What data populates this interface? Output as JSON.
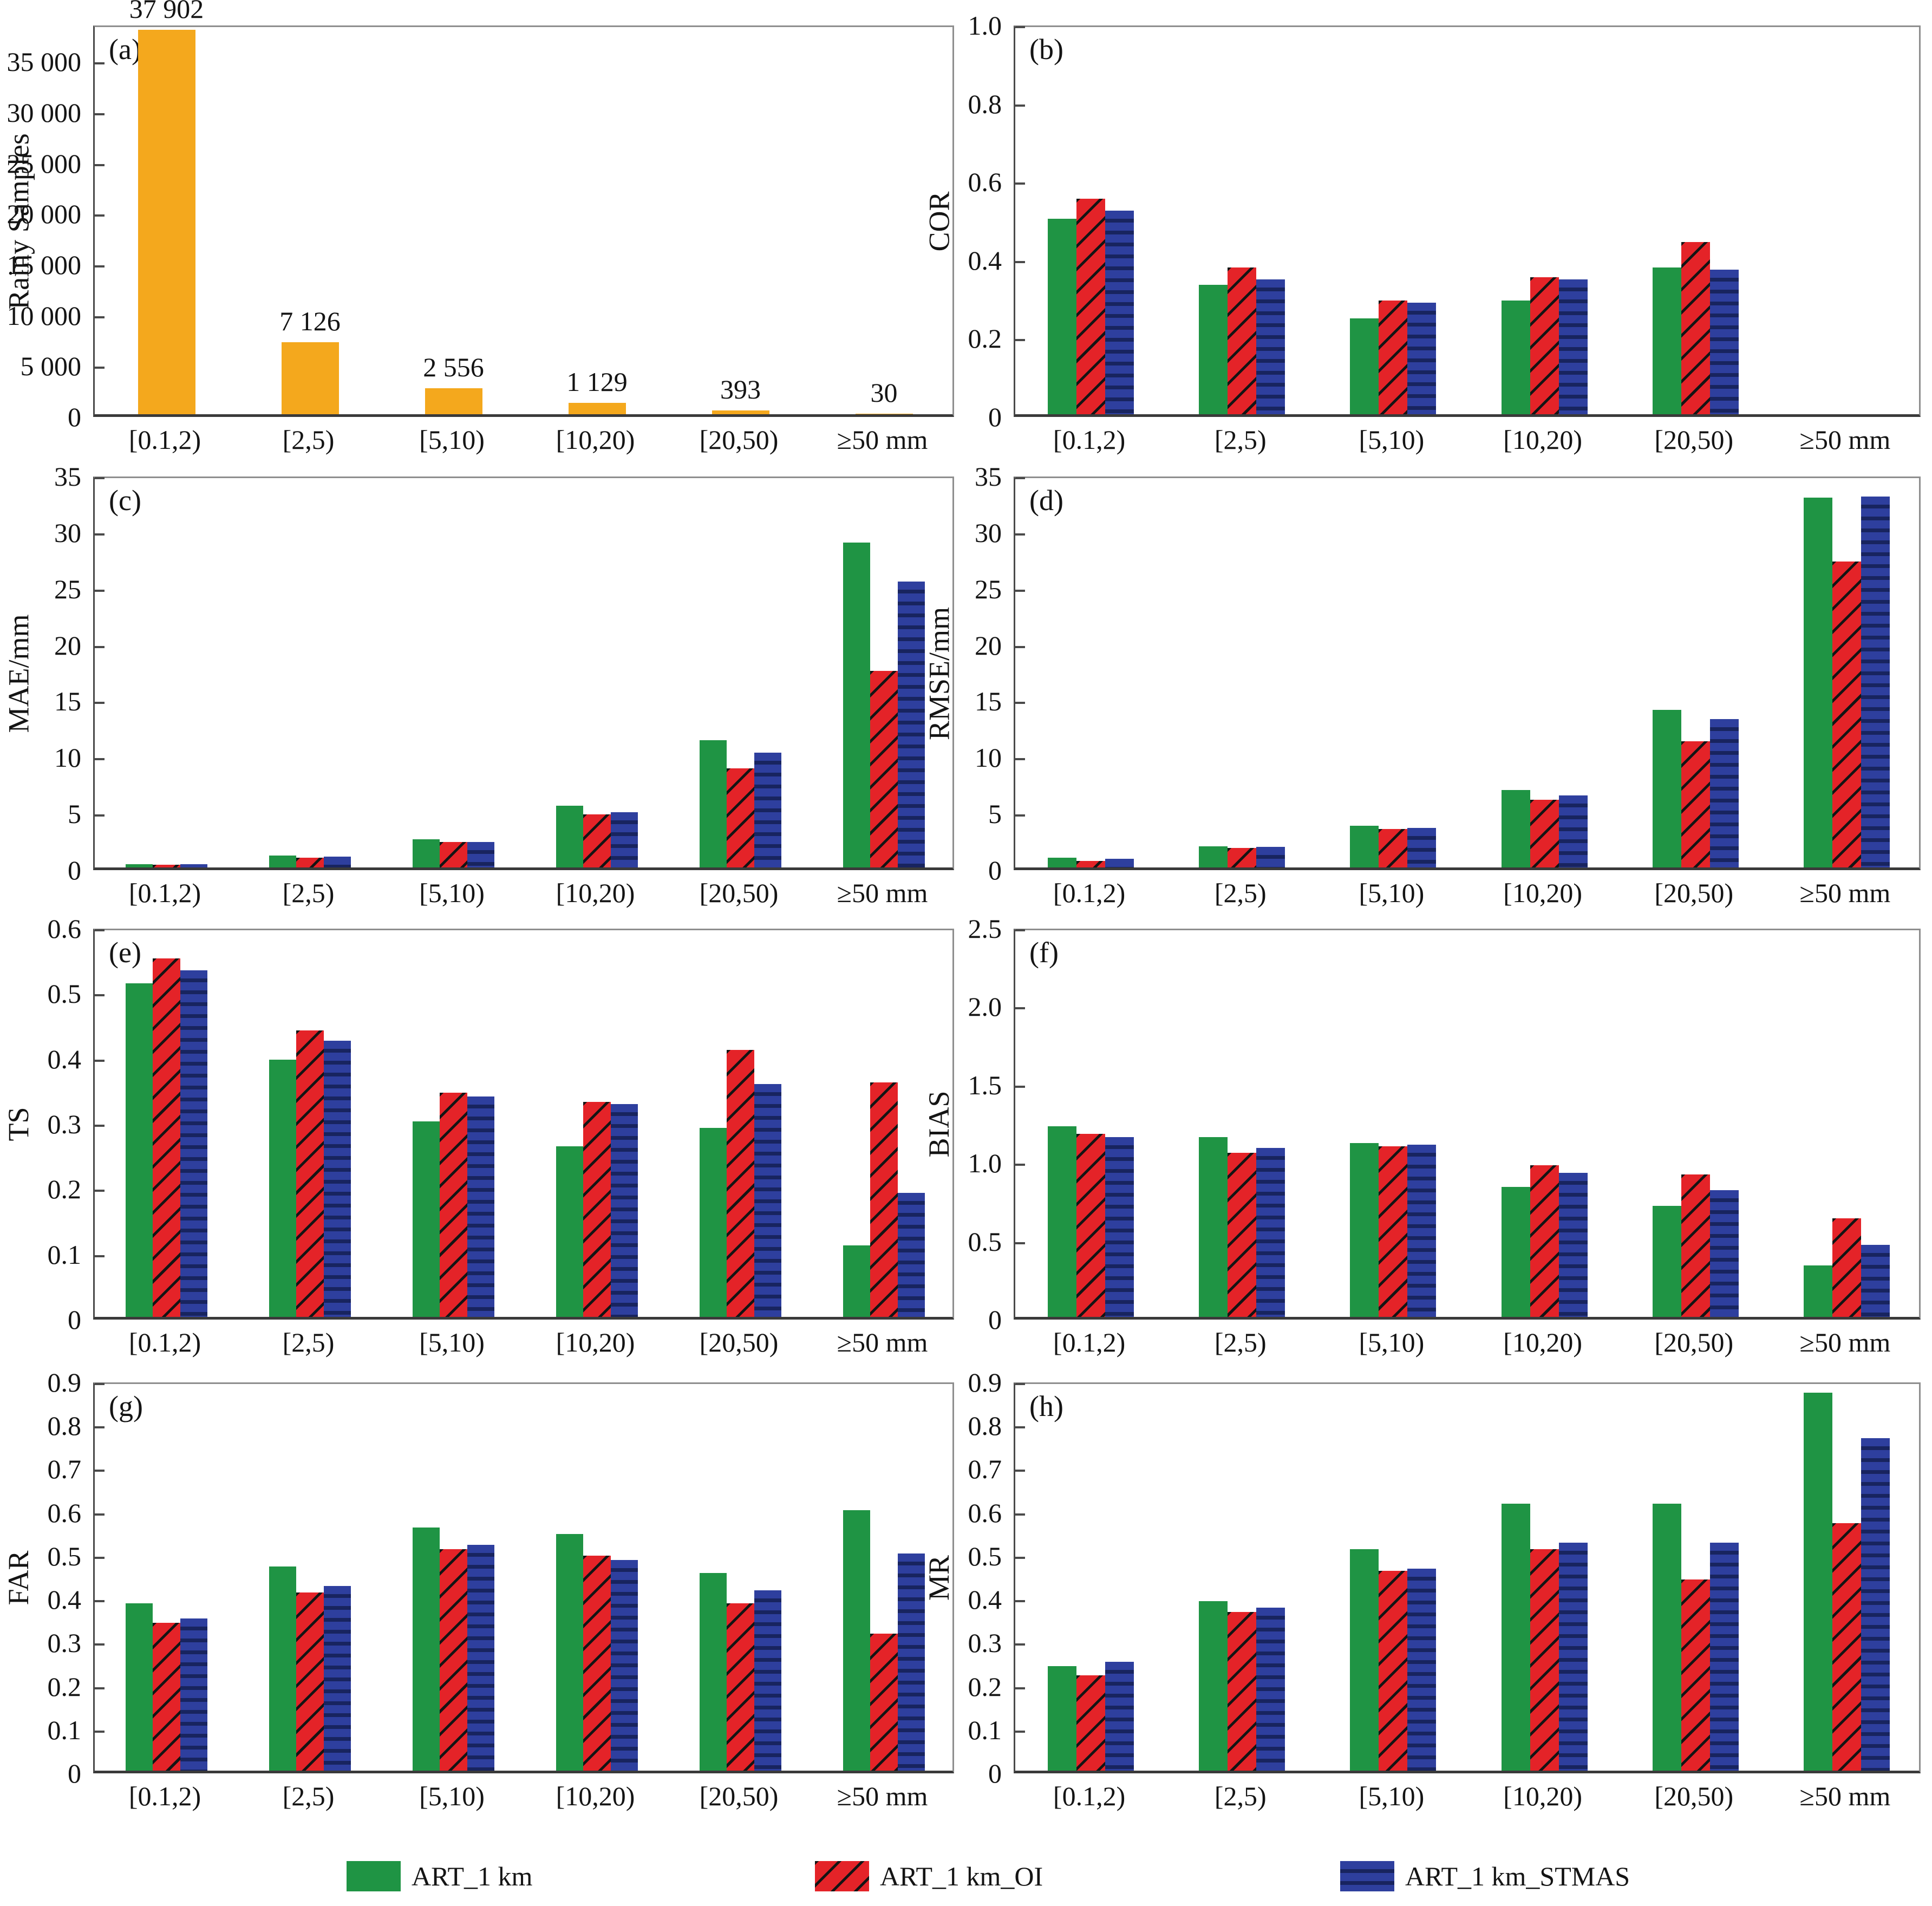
{
  "chart_data": {
    "type": "bar",
    "layout": "8 panels (a-h) in 4 rows x 2 columns, shared x categories, legend at bottom",
    "categories": [
      "[0.1,2)",
      "[2,5)",
      "[5,10)",
      "[10,20)",
      "[20,50)",
      "≥50 mm"
    ],
    "colors": {
      "green": "#1f9444",
      "red": "#e42328",
      "blue": "#2e3f9e",
      "blue_dark_band": "#18245f",
      "orange": "#f4a81d",
      "hatch_line": "#141414",
      "text": "#141414"
    },
    "legend": [
      {
        "label": "ART_1 km",
        "pattern": "solid-green"
      },
      {
        "label": "ART_1 km_OI",
        "pattern": "red-diagonal-hatch"
      },
      {
        "label": "ART_1 km_STMAS",
        "pattern": "blue-horizontal-bands"
      }
    ],
    "panels": [
      {
        "id": "a",
        "letter": "(a)",
        "ylabel": "Rainy Samples",
        "ylim": [
          0,
          38600
        ],
        "color_key": "orange",
        "yticks": [
          [
            0,
            "0"
          ],
          [
            5000,
            "5 000"
          ],
          [
            10000,
            "10 000"
          ],
          [
            15000,
            "15 000"
          ],
          [
            20000,
            "20 000"
          ],
          [
            25000,
            "25 000"
          ],
          [
            30000,
            "30 000"
          ],
          [
            35000,
            "35 000"
          ]
        ],
        "values": [
          37902,
          7126,
          2556,
          1129,
          393,
          30
        ],
        "bar_labels": [
          "37 902",
          "7 126",
          "2 556",
          "1 129",
          "393",
          "30"
        ]
      },
      {
        "id": "b",
        "letter": "(b)",
        "ylabel": "COR",
        "ylim": [
          0,
          1.0
        ],
        "yticks": [
          [
            0,
            "0"
          ],
          [
            0.2,
            "0.2"
          ],
          [
            0.4,
            "0.4"
          ],
          [
            0.6,
            "0.6"
          ],
          [
            0.8,
            "0.8"
          ],
          [
            1.0,
            "1.0"
          ]
        ],
        "series": [
          {
            "name": "ART_1 km",
            "values": [
              0.5,
              0.33,
              0.245,
              0.29,
              0.375,
              null
            ]
          },
          {
            "name": "ART_1 km_OI",
            "values": [
              0.55,
              0.375,
              0.29,
              0.35,
              0.44,
              null
            ]
          },
          {
            "name": "ART_1 km_STMAS",
            "values": [
              0.52,
              0.345,
              0.285,
              0.345,
              0.37,
              null
            ]
          }
        ]
      },
      {
        "id": "c",
        "letter": "(c)",
        "ylabel": "MAE/mm",
        "ylim": [
          0,
          35
        ],
        "yticks": [
          [
            0,
            "0"
          ],
          [
            5,
            "5"
          ],
          [
            10,
            "10"
          ],
          [
            15,
            "15"
          ],
          [
            20,
            "20"
          ],
          [
            25,
            "25"
          ],
          [
            30,
            "30"
          ],
          [
            35,
            "35"
          ]
        ],
        "series": [
          {
            "name": "ART_1 km",
            "values": [
              0.3,
              1.05,
              2.5,
              5.5,
              11.3,
              28.9
            ]
          },
          {
            "name": "ART_1 km_OI",
            "values": [
              0.22,
              0.85,
              2.25,
              4.7,
              8.8,
              17.5
            ]
          },
          {
            "name": "ART_1 km_STMAS",
            "values": [
              0.28,
              0.98,
              2.25,
              4.9,
              10.2,
              25.4
            ]
          }
        ]
      },
      {
        "id": "d",
        "letter": "(d)",
        "ylabel": "RMSE/mm",
        "ylim": [
          0,
          35
        ],
        "yticks": [
          [
            0,
            "0"
          ],
          [
            5,
            "5"
          ],
          [
            10,
            "10"
          ],
          [
            15,
            "15"
          ],
          [
            20,
            "20"
          ],
          [
            25,
            "25"
          ],
          [
            30,
            "30"
          ],
          [
            35,
            "35"
          ]
        ],
        "series": [
          {
            "name": "ART_1 km",
            "values": [
              0.85,
              1.9,
              3.7,
              6.9,
              14.0,
              32.9
            ]
          },
          {
            "name": "ART_1 km_OI",
            "values": [
              0.6,
              1.75,
              3.4,
              6.0,
              11.2,
              27.2
            ]
          },
          {
            "name": "ART_1 km_STMAS",
            "values": [
              0.75,
              1.85,
              3.5,
              6.4,
              13.2,
              33.0
            ]
          }
        ]
      },
      {
        "id": "e",
        "letter": "(e)",
        "ylabel": "TS",
        "ylim": [
          0,
          0.6
        ],
        "yticks": [
          [
            0,
            "0"
          ],
          [
            0.1,
            "0.1"
          ],
          [
            0.2,
            "0.2"
          ],
          [
            0.3,
            "0.3"
          ],
          [
            0.4,
            "0.4"
          ],
          [
            0.5,
            "0.5"
          ],
          [
            0.6,
            "0.6"
          ]
        ],
        "series": [
          {
            "name": "ART_1 km",
            "values": [
              0.512,
              0.395,
              0.3,
              0.262,
              0.29,
              0.11
            ]
          },
          {
            "name": "ART_1 km_OI",
            "values": [
              0.55,
              0.44,
              0.344,
              0.33,
              0.41,
              0.36
            ]
          },
          {
            "name": "ART_1 km_STMAS",
            "values": [
              0.532,
              0.424,
              0.338,
              0.327,
              0.357,
              0.19
            ]
          }
        ]
      },
      {
        "id": "f",
        "letter": "(f)",
        "ylabel": "BIAS",
        "ylim": [
          0,
          2.5
        ],
        "yticks": [
          [
            0,
            "0"
          ],
          [
            0.5,
            "0.5"
          ],
          [
            1.0,
            "1.0"
          ],
          [
            1.5,
            "1.5"
          ],
          [
            2.0,
            "2.0"
          ],
          [
            2.5,
            "2.5"
          ]
        ],
        "series": [
          {
            "name": "ART_1 km",
            "values": [
              1.22,
              1.15,
              1.11,
              0.83,
              0.71,
              0.33
            ]
          },
          {
            "name": "ART_1 km_OI",
            "values": [
              1.17,
              1.05,
              1.09,
              0.97,
              0.91,
              0.63
            ]
          },
          {
            "name": "ART_1 km_STMAS",
            "values": [
              1.15,
              1.08,
              1.1,
              0.92,
              0.81,
              0.46
            ]
          }
        ]
      },
      {
        "id": "g",
        "letter": "(g)",
        "ylabel": "FAR",
        "ylim": [
          0,
          0.9
        ],
        "yticks": [
          [
            0,
            "0"
          ],
          [
            0.1,
            "0.1"
          ],
          [
            0.2,
            "0.2"
          ],
          [
            0.3,
            "0.3"
          ],
          [
            0.4,
            "0.4"
          ],
          [
            0.5,
            "0.5"
          ],
          [
            0.6,
            "0.6"
          ],
          [
            0.7,
            "0.7"
          ],
          [
            0.8,
            "0.8"
          ],
          [
            0.9,
            "0.9"
          ]
        ],
        "series": [
          {
            "name": "ART_1 km",
            "values": [
              0.385,
              0.47,
              0.56,
              0.545,
              0.455,
              0.6
            ]
          },
          {
            "name": "ART_1 km_OI",
            "values": [
              0.34,
              0.41,
              0.51,
              0.495,
              0.385,
              0.315
            ]
          },
          {
            "name": "ART_1 km_STMAS",
            "values": [
              0.35,
              0.425,
              0.52,
              0.485,
              0.415,
              0.5
            ]
          }
        ]
      },
      {
        "id": "h",
        "letter": "(h)",
        "ylabel": "MR",
        "ylim": [
          0,
          0.9
        ],
        "yticks": [
          [
            0,
            "0"
          ],
          [
            0.1,
            "0.1"
          ],
          [
            0.2,
            "0.2"
          ],
          [
            0.3,
            "0.3"
          ],
          [
            0.4,
            "0.4"
          ],
          [
            0.5,
            "0.5"
          ],
          [
            0.6,
            "0.6"
          ],
          [
            0.7,
            "0.7"
          ],
          [
            0.8,
            "0.8"
          ],
          [
            0.9,
            "0.9"
          ]
        ],
        "series": [
          {
            "name": "ART_1 km",
            "values": [
              0.24,
              0.39,
              0.51,
              0.615,
              0.615,
              0.87
            ]
          },
          {
            "name": "ART_1 km_OI",
            "values": [
              0.22,
              0.365,
              0.46,
              0.51,
              0.44,
              0.57
            ]
          },
          {
            "name": "ART_1 km_STMAS",
            "values": [
              0.25,
              0.375,
              0.465,
              0.525,
              0.525,
              0.765
            ]
          }
        ]
      }
    ]
  }
}
